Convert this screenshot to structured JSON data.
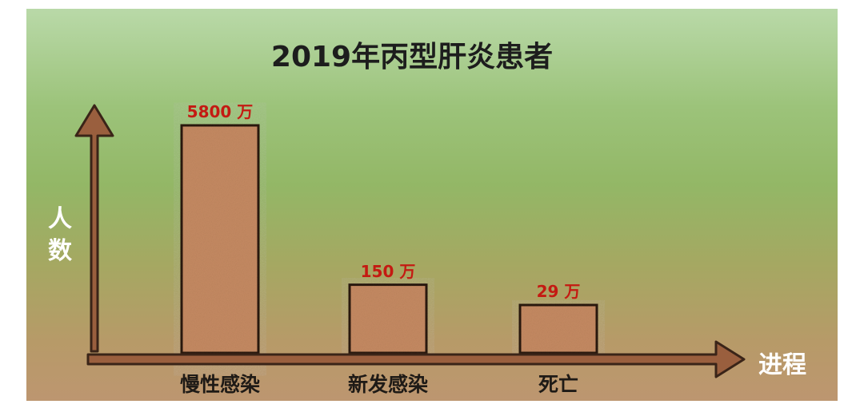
{
  "chart_data": {
    "type": "bar",
    "title": "2019年丙型肝炎患者",
    "ylabel": "人数",
    "xlabel": "进程",
    "categories": [
      "慢性感染",
      "新发感染",
      "死亡"
    ],
    "values": [
      5800,
      150,
      29
    ],
    "unit": "万",
    "data_labels": [
      "5800 万",
      "150 万",
      "29 万"
    ],
    "grid": false,
    "bar_color": "#c58a62",
    "axis_color": "#9a5f3e"
  }
}
